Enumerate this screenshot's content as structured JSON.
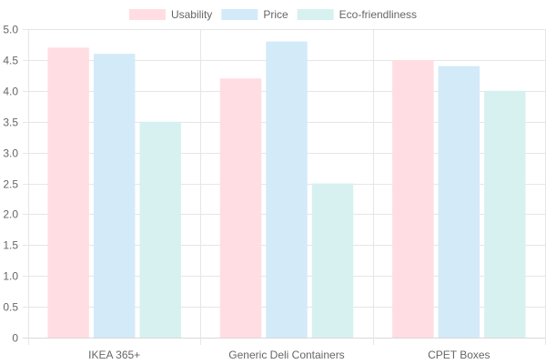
{
  "chart_data": {
    "type": "bar",
    "categories": [
      "IKEA 365+",
      "Generic Deli Containers",
      "CPET Boxes"
    ],
    "series": [
      {
        "name": "Usability",
        "values": [
          4.7,
          4.2,
          4.5
        ],
        "color": "#ffdde3"
      },
      {
        "name": "Price",
        "values": [
          4.6,
          4.8,
          4.4
        ],
        "color": "#d3eaf9"
      },
      {
        "name": "Eco-friendliness",
        "values": [
          3.5,
          2.5,
          4.0
        ],
        "color": "#d7f1f0"
      }
    ],
    "ylim": [
      0,
      5
    ],
    "yticks": [
      "0",
      "0.5",
      "1.0",
      "1.5",
      "2.0",
      "2.5",
      "3.0",
      "3.5",
      "4.0",
      "4.5",
      "5.0"
    ],
    "legend_position": "top-center",
    "grid": true,
    "title": "",
    "xlabel": "",
    "ylabel": ""
  }
}
